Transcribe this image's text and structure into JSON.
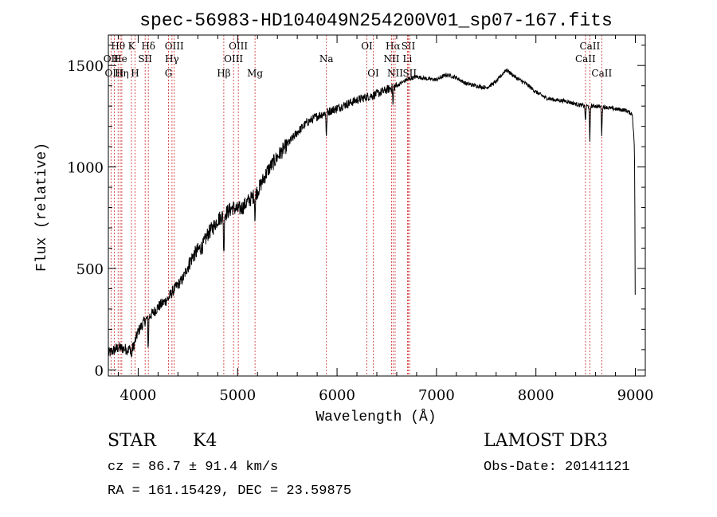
{
  "chart_data": {
    "type": "line",
    "title": "spec-56983-HD104049N254200V01_sp07-167.fits",
    "xlabel": "Wavelength (Å)",
    "ylabel": "Flux (relative)",
    "xlim": [
      3700,
      9100
    ],
    "ylim": [
      -30,
      1650
    ],
    "x_ticks": [
      4000,
      5000,
      6000,
      7000,
      8000,
      9000
    ],
    "y_ticks": [
      0,
      500,
      1000,
      1500
    ],
    "grid": false,
    "series": [
      {
        "x": [
          3700,
          3750,
          3800,
          3850,
          3900,
          3950,
          4000,
          4050,
          4100,
          4150,
          4200,
          4250,
          4300,
          4350,
          4400,
          4450,
          4500,
          4550,
          4600,
          4650,
          4700,
          4750,
          4800,
          4850,
          4900,
          4950,
          5000,
          5050,
          5100,
          5150,
          5200,
          5250,
          5300,
          5400,
          5500,
          5600,
          5700,
          5800,
          5900,
          6000,
          6100,
          6200,
          6300,
          6400,
          6500,
          6600,
          6700,
          6800,
          6900,
          7000,
          7100,
          7200,
          7300,
          7400,
          7500,
          7600,
          7700,
          7800,
          7900,
          8000,
          8100,
          8200,
          8300,
          8400,
          8500,
          8600,
          8700,
          8800,
          8900,
          8970,
          9000
        ],
        "y": [
          80,
          95,
          110,
          105,
          100,
          110,
          190,
          230,
          260,
          280,
          310,
          330,
          350,
          390,
          420,
          450,
          510,
          560,
          590,
          610,
          670,
          700,
          740,
          760,
          780,
          800,
          790,
          800,
          830,
          850,
          880,
          930,
          980,
          1050,
          1110,
          1170,
          1220,
          1250,
          1270,
          1290,
          1310,
          1330,
          1345,
          1360,
          1380,
          1400,
          1430,
          1445,
          1435,
          1430,
          1455,
          1440,
          1410,
          1400,
          1390,
          1420,
          1480,
          1440,
          1410,
          1370,
          1340,
          1330,
          1325,
          1310,
          1300,
          1300,
          1295,
          1285,
          1280,
          1260,
          1030
        ]
      }
    ],
    "absorption_dips": [
      [
        3933,
        50
      ],
      [
        4101,
        150
      ],
      [
        4861,
        200
      ],
      [
        5175,
        120
      ],
      [
        5893,
        120
      ],
      [
        6563,
        90
      ],
      [
        8498,
        80
      ],
      [
        8542,
        180
      ],
      [
        8662,
        140
      ],
      [
        9000,
        800
      ]
    ],
    "line_markers": [
      {
        "label": "Hδ",
        "x": 4102,
        "row": 0
      },
      {
        "label": "OII",
        "x": 3727,
        "row": 1
      },
      {
        "label": "OIII",
        "x": 3760,
        "row": 2
      },
      {
        "label": "Hθ",
        "x": 3798,
        "row": 0
      },
      {
        "label": "He",
        "x": 3820,
        "row": 1
      },
      {
        "label": "Hη",
        "x": 3835,
        "row": 2
      },
      {
        "label": "K",
        "x": 3933,
        "row": 0
      },
      {
        "label": "SII",
        "x": 4070,
        "row": 1
      },
      {
        "label": "H",
        "x": 3968,
        "row": 2
      },
      {
        "label": "OIII",
        "x": 4363,
        "row": 0
      },
      {
        "label": "Hγ",
        "x": 4340,
        "row": 1
      },
      {
        "label": "G",
        "x": 4305,
        "row": 2
      },
      {
        "label": "OIII",
        "x": 5007,
        "row": 0
      },
      {
        "label": "OIII",
        "x": 4959,
        "row": 1
      },
      {
        "label": "Hβ",
        "x": 4861,
        "row": 2
      },
      {
        "label": "Mg",
        "x": 5175,
        "row": 2
      },
      {
        "label": "Na",
        "x": 5893,
        "row": 1
      },
      {
        "label": "OI",
        "x": 6300,
        "row": 0
      },
      {
        "label": "OI",
        "x": 6364,
        "row": 2
      },
      {
        "label": "Hα",
        "x": 6563,
        "row": 0
      },
      {
        "label": "NII",
        "x": 6548,
        "row": 1
      },
      {
        "label": "NII",
        "x": 6584,
        "row": 2
      },
      {
        "label": "SII",
        "x": 6717,
        "row": 0
      },
      {
        "label": "Li",
        "x": 6708,
        "row": 1
      },
      {
        "label": "SII",
        "x": 6731,
        "row": 2
      },
      {
        "label": "CaII",
        "x": 8542,
        "row": 0
      },
      {
        "label": "CaII",
        "x": 8498,
        "row": 1
      },
      {
        "label": "CaII",
        "x": 8662,
        "row": 2
      }
    ]
  },
  "footer": {
    "object_type": "STAR",
    "subclass": "K4",
    "survey": "LAMOST DR3",
    "velocity": "cz = 86.7 ± 91.4 km/s",
    "obs_date": "Obs-Date: 20141121",
    "coords": "RA = 161.15429, DEC =  23.59875"
  }
}
